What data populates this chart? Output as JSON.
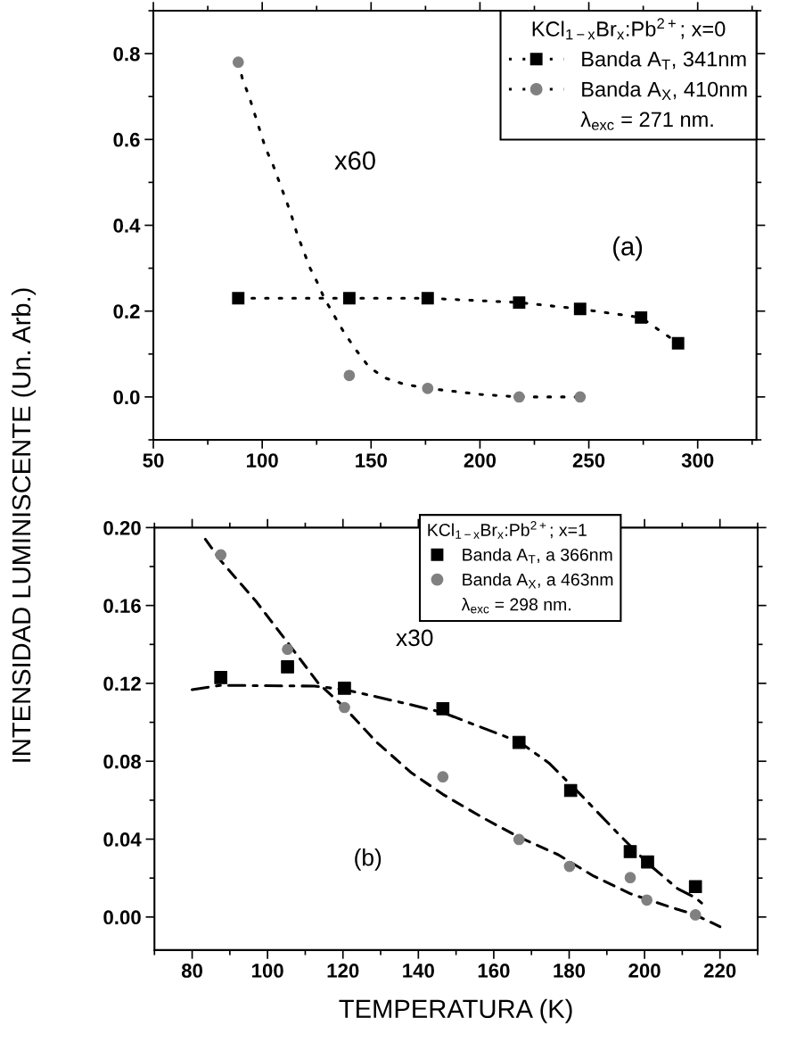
{
  "chart_data": [
    {
      "type": "line",
      "xlim": [
        50,
        327
      ],
      "xticks": [
        50,
        100,
        150,
        200,
        250,
        300
      ],
      "ylim": [
        -0.1,
        0.9
      ],
      "yticks": [
        {
          "value": 0,
          "label": "0.0"
        },
        {
          "value": 0.2,
          "label": "0.2"
        },
        {
          "value": 0.4,
          "label": "0.4"
        },
        {
          "value": 0.6,
          "label": "0.6"
        },
        {
          "value": 0.8,
          "label": "0.8"
        }
      ],
      "grid": false,
      "legend": "top right",
      "legend_title": "KCl$_{1−x}$Br$_{x}$:Pb$^{2+}$; x=0",
      "annotations": [
        "x60",
        "(a)",
        "λ$_{exc}$ = 271 nm."
      ],
      "series": [
        {
          "name": "Banda A$_{T}$, 341nm",
          "line_style": "dotted",
          "marker": "square",
          "color": "#000000",
          "x": [
            89,
            140,
            176,
            218,
            246,
            274,
            291
          ],
          "values": [
            0.23,
            0.23,
            0.23,
            0.22,
            0.205,
            0.185,
            0.125
          ]
        },
        {
          "name": "Banda A$_{X}$, 410nm",
          "type": "scatter",
          "line_style": "dotted",
          "marker": "circle",
          "color": "#808080",
          "x": [
            89,
            140,
            176,
            218,
            246
          ],
          "values": [
            0.78,
            0.05,
            0.02,
            0.0,
            0.0
          ]
        },
        {
          "line_style": "dotted",
          "marker": "none",
          "color": "#000000",
          "x": [
            89,
            91,
            94,
            96.5,
            99,
            101.5,
            105,
            113,
            116,
            119,
            122,
            125,
            128.5,
            133,
            137.6,
            143,
            149,
            156,
            165,
            176,
            200,
            218,
            246
          ],
          "values": [
            0.78,
            0.74,
            0.7,
            0.66,
            0.62,
            0.58,
            0.54,
            0.43,
            0.38,
            0.34,
            0.3,
            0.27,
            0.23,
            0.19,
            0.15,
            0.11,
            0.07,
            0.045,
            0.03,
            0.02,
            0.006,
            0.0,
            0.0
          ]
        }
      ]
    },
    {
      "type": "scatter",
      "xlim": [
        70,
        230
      ],
      "xticks": [
        80,
        100,
        120,
        140,
        160,
        180,
        200,
        220
      ],
      "ylim": [
        -0.017,
        0.2
      ],
      "yticks": [
        {
          "value": 0,
          "label": "0.00"
        },
        {
          "value": 0.04,
          "label": "0.04"
        },
        {
          "value": 0.08,
          "label": "0.08"
        },
        {
          "value": 0.12,
          "label": "0.12"
        },
        {
          "value": 0.16,
          "label": "0.16"
        },
        {
          "value": 0.2,
          "label": "0.20"
        }
      ],
      "grid": false,
      "xlabel": "TEMPERATURA (K)",
      "ylabel": "INTENSIDAD LUMINISCENTE (Un. Arb.)",
      "legend": "top right",
      "legend_title": "KCl$_{1−x}$Br$_{x}$:Pb$^{2+}$; x=1",
      "annotations": [
        "x30",
        "(b)",
        "λ$_{exc}$ = 298 nm."
      ],
      "series": [
        {
          "name": "Banda A$_{T}$, a 366nm",
          "marker": "square",
          "color": "#000000",
          "x": [
            87.6,
            105.3,
            120.4,
            146.5,
            166.7,
            180.4,
            196.2,
            200.8,
            213.5
          ],
          "values": [
            0.123,
            0.1285,
            0.1175,
            0.107,
            0.0897,
            0.065,
            0.0336,
            0.0283,
            0.0156
          ]
        },
        {
          "name": "Banda A$_{X}$, a 463nm",
          "marker": "circle",
          "color": "#808080",
          "x": [
            87.6,
            105.3,
            120.4,
            146.5,
            166.7,
            180.1,
            196.2,
            200.6,
            213.5
          ],
          "values": [
            0.186,
            0.1375,
            0.1076,
            0.072,
            0.0398,
            0.026,
            0.0202,
            0.0087,
            0.0011
          ]
        },
        {
          "type": "line",
          "line_style": "dashdot",
          "marker": "none",
          "color": "#000000",
          "x": [
            80,
            87.6,
            112.4,
            120.4,
            135.9,
            146.5,
            155.9,
            166.7,
            174.7,
            183,
            192.4,
            200.6,
            208.8,
            213.5,
            215.6
          ],
          "values": [
            0.1168,
            0.119,
            0.1186,
            0.1168,
            0.11,
            0.105,
            0.098,
            0.09,
            0.079,
            0.063,
            0.044,
            0.028,
            0.0145,
            0.0099,
            0.0064
          ]
        },
        {
          "type": "line",
          "line_style": "dashed",
          "marker": "none",
          "color": "#000000",
          "x": [
            83.5,
            87.6,
            97,
            105.3,
            113.5,
            120.4,
            128.8,
            138.2,
            146.5,
            157.1,
            166.7,
            177.1,
            186.5,
            196.2,
            206.5,
            213.5,
            220
          ],
          "values": [
            0.194,
            0.183,
            0.162,
            0.141,
            0.12,
            0.1076,
            0.09,
            0.074,
            0.063,
            0.051,
            0.041,
            0.032,
            0.021,
            0.012,
            0.0053,
            0.0011,
            -0.005
          ]
        }
      ]
    }
  ]
}
